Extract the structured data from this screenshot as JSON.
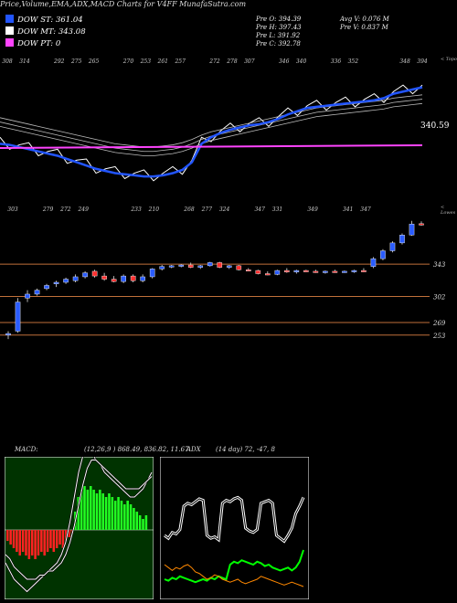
{
  "header": {
    "title": "Price,Volume,EMA,ADX,MACD Charts for V4FF MunafaSutra.com"
  },
  "legend": [
    {
      "label": "DOW ST: 361.04",
      "color": "#2255ff"
    },
    {
      "label": "DOW MT: 343.08",
      "color": "#ffffff"
    },
    {
      "label": "DOW PT: 0",
      "color": "#ff44ff"
    }
  ],
  "stats": {
    "col1": [
      "Pre O: 394.39",
      "Pre H: 397.43",
      "Pre L: 391.92",
      "Pre C: 392.78"
    ],
    "col2": [
      "Avg V: 0.076  M",
      "Pre  V: 0.837 M"
    ]
  },
  "ema_panel": {
    "corner_label": "< Topo",
    "top_numbers": [
      "308",
      "314",
      "",
      "292",
      "275",
      "265",
      "",
      "270",
      "253",
      "261",
      "257",
      "",
      "272",
      "278",
      "307",
      "",
      "346",
      "340",
      "",
      "336",
      "352",
      "",
      "",
      "348",
      "394"
    ],
    "last_value_label": "340.59"
  },
  "price_panel": {
    "corner_label": "< Lowes",
    "top_numbers": [
      "303",
      "",
      "279",
      "272",
      "249",
      "",
      "",
      "233",
      "210",
      "",
      "268",
      "277",
      "324",
      "",
      "347",
      "331",
      "",
      "349",
      "",
      "341",
      "347"
    ],
    "levels": [
      "343",
      "302",
      "269",
      "253"
    ]
  },
  "macd_panel": {
    "label": "MACD:",
    "values": "(12,26,9 ) 868.49, 836.82, 11.67"
  },
  "adx_panel": {
    "label": "ADX",
    "values": "(14 day) 72, -47, 8"
  },
  "chart_data": [
    {
      "type": "line",
      "title": "EMA",
      "series": [
        {
          "name": "",
          "values": [
            300,
            299,
            297,
            295,
            293,
            291,
            289,
            286,
            283,
            280,
            277,
            275,
            273,
            272,
            271,
            270,
            270,
            271,
            273,
            276,
            283,
            300,
            306,
            310,
            313,
            315,
            317,
            318,
            320,
            323,
            327,
            330,
            333,
            334,
            335,
            336,
            337,
            338,
            339,
            340,
            342,
            346,
            348,
            350,
            352
          ]
        },
        {
          "name": "",
          "values": [
            320,
            318,
            316,
            314,
            312,
            310,
            308,
            306,
            304,
            302,
            300,
            298,
            296,
            295,
            294,
            293,
            293,
            294,
            295,
            297,
            300,
            304,
            307,
            309,
            311,
            313,
            315,
            317,
            319,
            321,
            323,
            325,
            327,
            329,
            330,
            331,
            332,
            333,
            334,
            335,
            336,
            338,
            339,
            340,
            341
          ]
        }
      ]
    },
    {
      "type": "candlestick",
      "title": "Price",
      "levels": [
        343,
        302,
        269,
        253
      ],
      "candles": [
        {
          "o": 253,
          "h": 258,
          "l": 248,
          "c": 255
        },
        {
          "o": 258,
          "h": 300,
          "l": 256,
          "c": 295
        },
        {
          "o": 300,
          "h": 310,
          "l": 295,
          "c": 305
        },
        {
          "o": 305,
          "h": 312,
          "l": 303,
          "c": 310
        },
        {
          "o": 312,
          "h": 318,
          "l": 310,
          "c": 316
        },
        {
          "o": 318,
          "h": 322,
          "l": 314,
          "c": 320
        },
        {
          "o": 320,
          "h": 326,
          "l": 318,
          "c": 324
        },
        {
          "o": 322,
          "h": 330,
          "l": 320,
          "c": 327
        },
        {
          "o": 327,
          "h": 334,
          "l": 325,
          "c": 332
        },
        {
          "o": 334,
          "h": 336,
          "l": 326,
          "c": 328
        },
        {
          "o": 328,
          "h": 332,
          "l": 322,
          "c": 324
        },
        {
          "o": 324,
          "h": 328,
          "l": 320,
          "c": 321
        },
        {
          "o": 321,
          "h": 330,
          "l": 319,
          "c": 328
        },
        {
          "o": 328,
          "h": 330,
          "l": 320,
          "c": 322
        },
        {
          "o": 322,
          "h": 330,
          "l": 320,
          "c": 327
        },
        {
          "o": 327,
          "h": 338,
          "l": 325,
          "c": 337
        },
        {
          "o": 337,
          "h": 342,
          "l": 335,
          "c": 340
        },
        {
          "o": 340,
          "h": 342,
          "l": 338,
          "c": 341
        },
        {
          "o": 341,
          "h": 343,
          "l": 339,
          "c": 342
        },
        {
          "o": 342,
          "h": 345,
          "l": 338,
          "c": 339
        },
        {
          "o": 339,
          "h": 342,
          "l": 337,
          "c": 341
        },
        {
          "o": 341,
          "h": 346,
          "l": 340,
          "c": 345
        },
        {
          "o": 345,
          "h": 346,
          "l": 338,
          "c": 339
        },
        {
          "o": 339,
          "h": 342,
          "l": 337,
          "c": 341
        },
        {
          "o": 341,
          "h": 342,
          "l": 335,
          "c": 336
        },
        {
          "o": 336,
          "h": 338,
          "l": 334,
          "c": 335
        },
        {
          "o": 335,
          "h": 336,
          "l": 330,
          "c": 331
        },
        {
          "o": 331,
          "h": 334,
          "l": 329,
          "c": 330
        },
        {
          "o": 330,
          "h": 336,
          "l": 329,
          "c": 335
        },
        {
          "o": 335,
          "h": 338,
          "l": 332,
          "c": 333
        },
        {
          "o": 333,
          "h": 336,
          "l": 331,
          "c": 335
        },
        {
          "o": 335,
          "h": 336,
          "l": 333,
          "c": 334
        },
        {
          "o": 334,
          "h": 336,
          "l": 332,
          "c": 333
        },
        {
          "o": 333,
          "h": 335,
          "l": 331,
          "c": 334
        },
        {
          "o": 334,
          "h": 336,
          "l": 332,
          "c": 333
        },
        {
          "o": 333,
          "h": 335,
          "l": 332,
          "c": 334
        },
        {
          "o": 334,
          "h": 336,
          "l": 332,
          "c": 335
        },
        {
          "o": 335,
          "h": 338,
          "l": 333,
          "c": 334
        },
        {
          "o": 340,
          "h": 352,
          "l": 338,
          "c": 350
        },
        {
          "o": 350,
          "h": 362,
          "l": 348,
          "c": 360
        },
        {
          "o": 360,
          "h": 372,
          "l": 358,
          "c": 370
        },
        {
          "o": 370,
          "h": 382,
          "l": 368,
          "c": 380
        },
        {
          "o": 380,
          "h": 398,
          "l": 379,
          "c": 394
        },
        {
          "o": 394.39,
          "h": 397.43,
          "l": 391.92,
          "c": 392.78
        }
      ]
    },
    {
      "type": "bar",
      "title": "MACD",
      "histogram": [
        -3,
        -4,
        -5,
        -6,
        -7,
        -6,
        -7,
        -8,
        -7,
        -8,
        -7,
        -6,
        -7,
        -6,
        -5,
        -6,
        -5,
        -4,
        -5,
        -3,
        -2,
        -1,
        5,
        9,
        11,
        12,
        11,
        12,
        11,
        10,
        11,
        10,
        9,
        10,
        9,
        8,
        9,
        8,
        7,
        8,
        7,
        6,
        5,
        4,
        3,
        4
      ],
      "macd": [
        -8,
        -10,
        -12,
        -13,
        -14,
        -15,
        -14,
        -13,
        -12,
        -11,
        -10,
        -9,
        -8,
        -6,
        -3,
        2,
        8,
        14,
        18,
        20,
        19,
        17,
        16,
        14,
        13,
        12,
        11,
        10,
        9,
        8,
        8,
        9,
        10,
        12,
        14
      ],
      "signal": [
        -6,
        -7,
        -9,
        -10,
        -11,
        -12,
        -12,
        -12,
        -11,
        -11,
        -10,
        -10,
        -9,
        -8,
        -6,
        -3,
        1,
        6,
        11,
        15,
        17,
        17,
        16,
        15,
        14,
        13,
        12,
        11,
        10,
        10,
        10,
        10,
        11,
        12,
        13
      ]
    },
    {
      "type": "line",
      "title": "ADX",
      "series": [
        {
          "name": "",
          "color": "#ffffff",
          "values": [
            40,
            38,
            42,
            41,
            44,
            60,
            62,
            61,
            63,
            65,
            64,
            40,
            38,
            39,
            37,
            62,
            64,
            63,
            65,
            66,
            64,
            45,
            43,
            42,
            44,
            62,
            63,
            64,
            62,
            40,
            38,
            36,
            40,
            45,
            55,
            60,
            66
          ]
        },
        {
          "name": "",
          "color": "#00ff00",
          "values": [
            10,
            9,
            11,
            10,
            12,
            11,
            10,
            9,
            8,
            9,
            10,
            9,
            11,
            10,
            12,
            11,
            10,
            20,
            22,
            21,
            23,
            22,
            21,
            20,
            22,
            21,
            19,
            20,
            18,
            17,
            16,
            17,
            18,
            16,
            18,
            22,
            30
          ]
        },
        {
          "name": "",
          "color": "#ff8800",
          "values": [
            20,
            18,
            16,
            18,
            17,
            19,
            20,
            18,
            15,
            14,
            12,
            10,
            11,
            13,
            12,
            10,
            9,
            8,
            9,
            10,
            8,
            7,
            8,
            9,
            10,
            12,
            11,
            10,
            9,
            8,
            7,
            6,
            7,
            8,
            7,
            6,
            5
          ]
        }
      ]
    }
  ]
}
